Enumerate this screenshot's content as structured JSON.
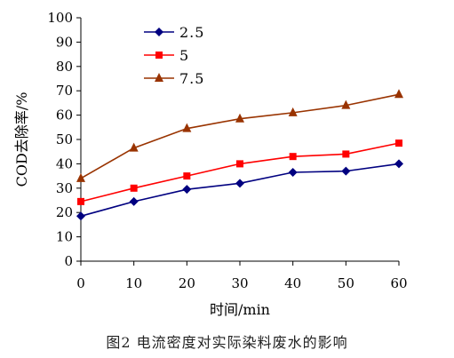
{
  "chart_data": {
    "type": "line",
    "x": [
      0,
      10,
      20,
      30,
      40,
      50,
      60
    ],
    "xlim": [
      0,
      60
    ],
    "xticks": [
      "0",
      "10",
      "20",
      "30",
      "40",
      "50",
      "60"
    ],
    "ylim": [
      0,
      100
    ],
    "yticks": [
      "0",
      "10",
      "20",
      "30",
      "40",
      "50",
      "60",
      "70",
      "80",
      "90",
      "100"
    ],
    "xlabel": "时间/min",
    "ylabel": "COD去除率/%",
    "grid": false,
    "legend_position": "top-left",
    "series": [
      {
        "name": "2.5",
        "color": "#000080",
        "marker": "diamond",
        "values": [
          18.5,
          24.5,
          29.5,
          32,
          36.5,
          37,
          40
        ]
      },
      {
        "name": "5",
        "color": "#ff0000",
        "marker": "square",
        "values": [
          24.5,
          30,
          35,
          40,
          43,
          44,
          48.5
        ]
      },
      {
        "name": "7.5",
        "color": "#993300",
        "marker": "triangle",
        "values": [
          34,
          46.5,
          54.5,
          58.5,
          61,
          64,
          68.5
        ]
      }
    ]
  },
  "caption": "图2  电流密度对实际染料废水的影响"
}
